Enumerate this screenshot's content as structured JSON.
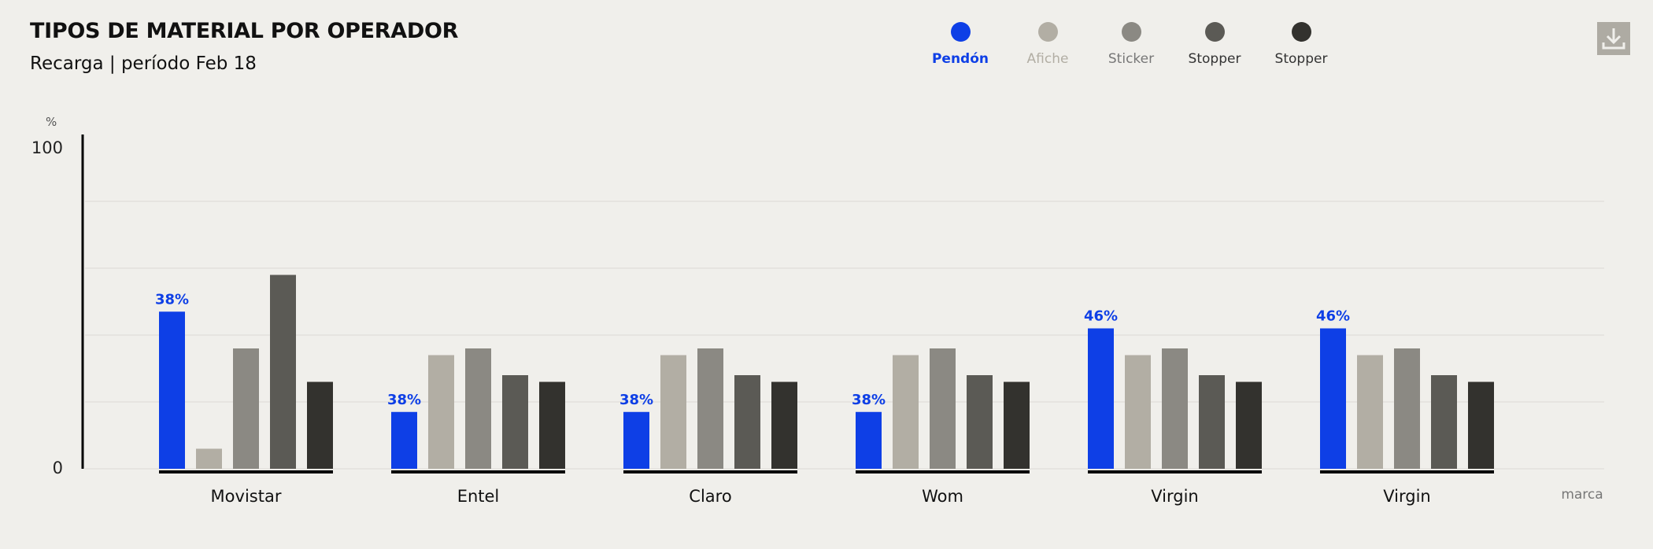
{
  "header": {
    "title": "TIPOS DE MATERIAL POR OPERADOR",
    "subtitle": "Recarga | período Feb 18"
  },
  "legend": [
    {
      "label": "Pendón",
      "color": "#0e3fe6",
      "active": true
    },
    {
      "label": "Afiche",
      "color": "#b2aea4",
      "active": false
    },
    {
      "label": "Sticker",
      "color": "#8b8983",
      "active": false
    },
    {
      "label": "Stopper",
      "color": "#5b5a55",
      "active": false
    },
    {
      "label": "Stopper",
      "color": "#33322e",
      "active": false
    }
  ],
  "download_icon": "download-icon",
  "chart_data": {
    "type": "bar",
    "categories": [
      "Movistar",
      "Entel",
      "Claro",
      "Wom",
      "Virgin",
      "Virgin"
    ],
    "series": [
      {
        "name": "Pendón",
        "color": "#0e3fe6",
        "values": [
          47,
          17,
          17,
          17,
          42,
          42
        ]
      },
      {
        "name": "Afiche",
        "color": "#b2aea4",
        "values": [
          6,
          34,
          34,
          34,
          34,
          34
        ]
      },
      {
        "name": "Sticker",
        "color": "#8b8983",
        "values": [
          36,
          36,
          36,
          36,
          36,
          36
        ]
      },
      {
        "name": "Stopper",
        "color": "#5b5a55",
        "values": [
          58,
          28,
          28,
          28,
          28,
          28
        ]
      },
      {
        "name": "Stopper",
        "color": "#33322e",
        "values": [
          26,
          26,
          26,
          26,
          26,
          26
        ]
      }
    ],
    "data_labels": [
      "38%",
      "38%",
      "38%",
      "38%",
      "46%",
      "46%"
    ],
    "ylim": [
      0,
      100
    ],
    "yticks": [
      "0",
      "100"
    ],
    "ylabel": "%",
    "xlabel": "marca",
    "grid": true
  }
}
